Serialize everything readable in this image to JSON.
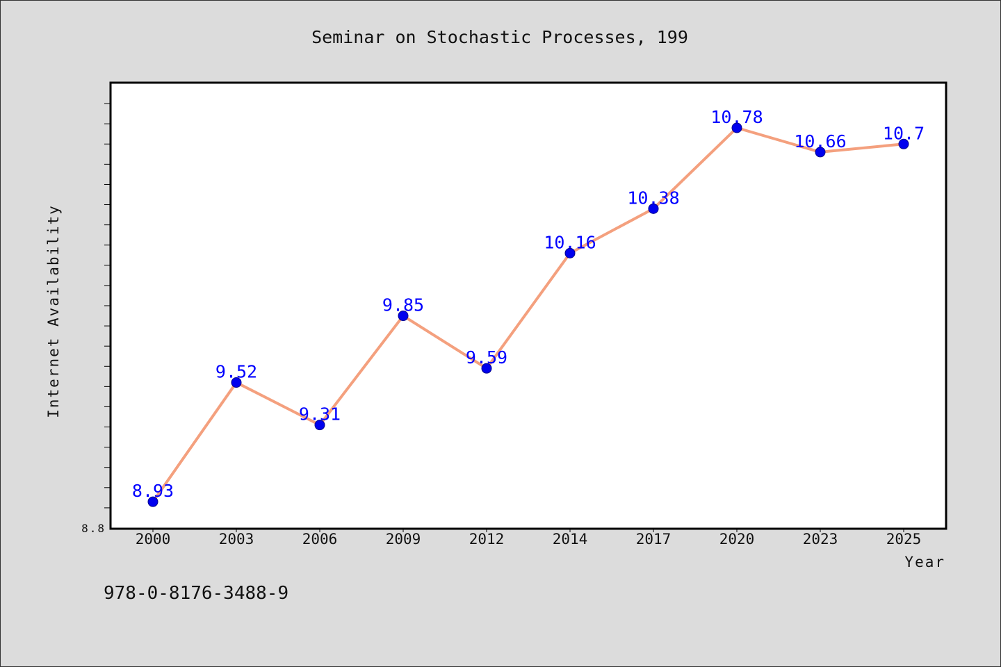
{
  "chart_data": {
    "type": "line",
    "title": "Seminar on Stochastic Processes, 199",
    "xlabel": "Year",
    "ylabel": "Internet Availability",
    "categories": [
      "2000",
      "2003",
      "2006",
      "2009",
      "2012",
      "2014",
      "2017",
      "2020",
      "2023",
      "2025"
    ],
    "series": [
      {
        "values": [
          8.93,
          9.52,
          9.31,
          9.85,
          9.59,
          10.16,
          10.38,
          10.78,
          10.66,
          10.7
        ],
        "labels": [
          "8.93",
          "9.52",
          "9.31",
          "9.85",
          "9.59",
          "10.16",
          "10.38",
          "10.78",
          "10.66",
          "10.7"
        ],
        "line_color": "#f4a07e",
        "marker_color": "#0000ee"
      }
    ],
    "y_tick_labels": [
      "8.8"
    ],
    "ylim": [
      8.8,
      11.0
    ],
    "grid": false,
    "legend": "none",
    "label_color": "#0000ff"
  },
  "footer": {
    "isbn": "978-0-8176-3488-9"
  }
}
